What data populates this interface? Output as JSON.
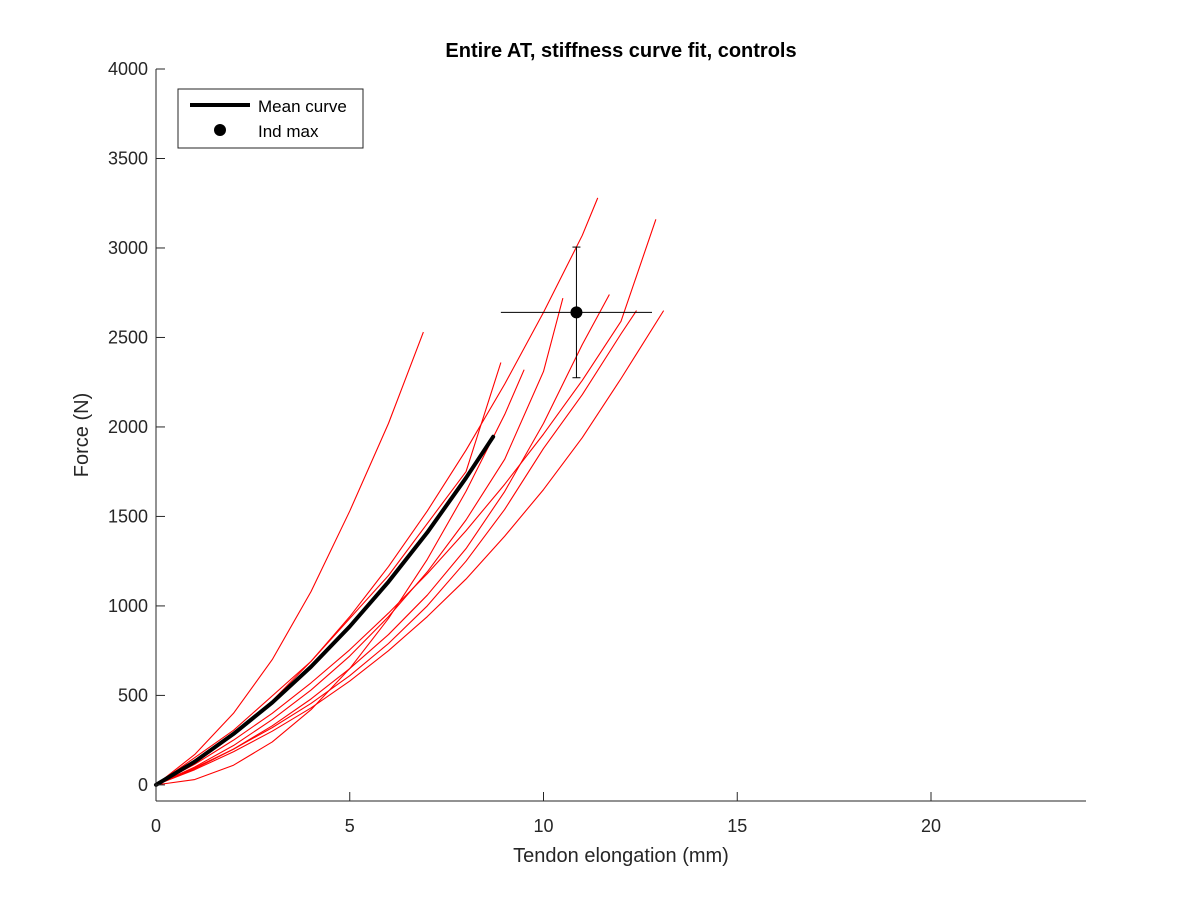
{
  "chart_data": {
    "type": "line",
    "title": "Entire AT, stiffness curve fit, controls",
    "xlabel": "Tendon elongation (mm)",
    "ylabel": "Force (N)",
    "xlim": [
      0,
      24
    ],
    "ylim": [
      -90,
      4000
    ],
    "xticks": [
      "0",
      "5",
      "10",
      "15",
      "20"
    ],
    "yticks": [
      "0",
      "500",
      "1000",
      "1500",
      "2000",
      "2500",
      "3000",
      "3500",
      "4000"
    ],
    "legend_position": "top-left",
    "grid": false,
    "colors": {
      "individual": "#ff0000",
      "mean": "#000000",
      "axes": "#262626"
    },
    "series": [
      {
        "name": "Mean curve",
        "style": "thick-line",
        "color": "#000000",
        "x": [
          0,
          1,
          2,
          3,
          4,
          5,
          6,
          7,
          8,
          8.7
        ],
        "y": [
          0,
          130,
          285,
          460,
          660,
          885,
          1135,
          1410,
          1715,
          1945
        ]
      },
      {
        "x": [
          0,
          1,
          2,
          3,
          4,
          5,
          6,
          6.9
        ],
        "y": [
          0,
          170,
          400,
          700,
          1080,
          1530,
          2020,
          2530
        ]
      },
      {
        "x": [
          0,
          1,
          2,
          3,
          4,
          5,
          6,
          7,
          8,
          9,
          10,
          11,
          11.4
        ],
        "y": [
          0,
          120,
          280,
          470,
          690,
          940,
          1220,
          1530,
          1870,
          2240,
          2640,
          3070,
          3280
        ]
      },
      {
        "x": [
          0,
          1,
          2,
          3,
          4,
          5,
          6,
          7,
          8,
          9,
          10,
          11,
          12,
          12.9
        ],
        "y": [
          0,
          115,
          250,
          400,
          570,
          755,
          960,
          1180,
          1420,
          1680,
          1960,
          2260,
          2590,
          3160
        ]
      },
      {
        "x": [
          0,
          2,
          4,
          6,
          8,
          8.9
        ],
        "y": [
          0,
          305,
          690,
          1170,
          1750,
          2360
        ]
      },
      {
        "x": [
          0,
          1,
          2,
          3,
          4,
          5,
          6,
          7,
          8,
          9,
          10,
          10.5
        ],
        "y": [
          0,
          100,
          220,
          365,
          530,
          720,
          940,
          1190,
          1480,
          1820,
          2310,
          2720
        ]
      },
      {
        "x": [
          0,
          1,
          2,
          3,
          4,
          5,
          6,
          7,
          8,
          9,
          9.5
        ],
        "y": [
          0,
          30,
          110,
          240,
          420,
          650,
          930,
          1260,
          1640,
          2070,
          2320
        ]
      },
      {
        "x": [
          0,
          1,
          2,
          3,
          4,
          5,
          6,
          7,
          8,
          9,
          10,
          11,
          11.7
        ],
        "y": [
          0,
          90,
          200,
          330,
          480,
          650,
          840,
          1060,
          1320,
          1640,
          2020,
          2460,
          2740
        ]
      },
      {
        "x": [
          0,
          1,
          2,
          3,
          4,
          5,
          6,
          7,
          8,
          9,
          10,
          11,
          12,
          12.4
        ],
        "y": [
          0,
          95,
          200,
          320,
          455,
          610,
          790,
          1000,
          1250,
          1540,
          1880,
          2180,
          2520,
          2650
        ]
      },
      {
        "x": [
          0,
          1,
          2,
          3,
          4,
          5,
          6,
          7,
          8,
          9,
          10,
          11,
          12,
          13.1
        ],
        "y": [
          0,
          85,
          185,
          300,
          430,
          580,
          750,
          940,
          1150,
          1390,
          1650,
          1940,
          2270,
          2650
        ]
      }
    ],
    "ind_max": {
      "name": "Ind max",
      "x": 10.85,
      "y": 2640,
      "xerr": 1.95,
      "yerr": 365
    }
  }
}
